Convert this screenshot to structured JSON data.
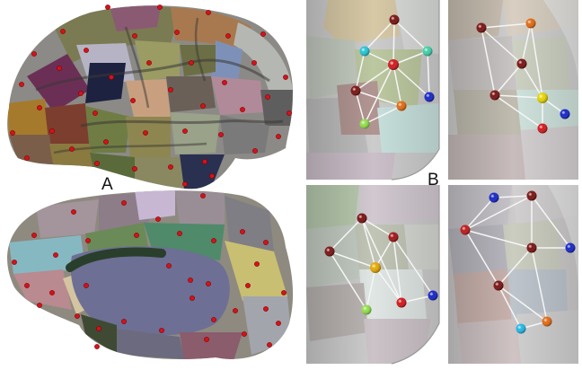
{
  "labels": {
    "a": "A",
    "b": "B"
  },
  "colors": {
    "node_red": "#d3161b",
    "node_darkred": "#6e1010",
    "node_yellow": "#e8d400",
    "node_orange": "#e36a10",
    "node_green": "#92e04a",
    "node_cyan": "#22c6d8",
    "node_blue": "#1424c8",
    "edge": "#f4f4f4",
    "brain_gray": "#8c8a86",
    "inset_gray": "#cfcdcd"
  },
  "icons": [
    "brain-lateral-surface",
    "brain-medial-surface",
    "network-node",
    "network-edge"
  ]
}
